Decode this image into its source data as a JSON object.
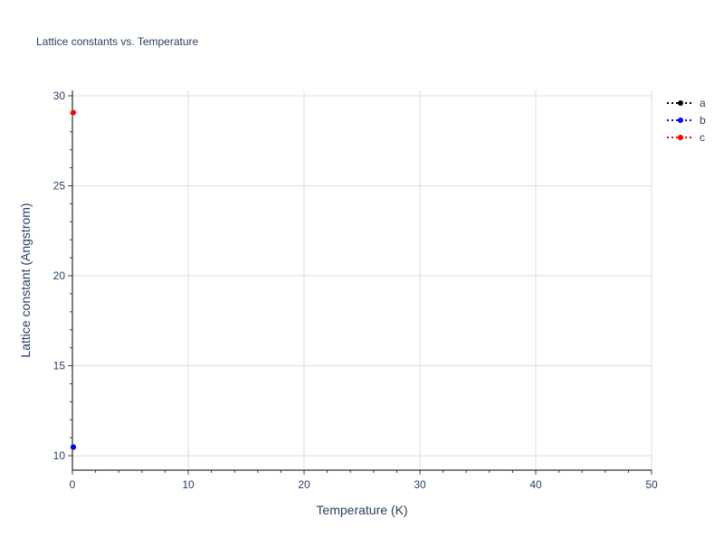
{
  "chart_data": {
    "type": "scatter",
    "title": "Lattice constants vs. Temperature",
    "xlabel": "Temperature (K)",
    "ylabel": "Lattice constant (Angstrom)",
    "xlim": [
      0,
      50
    ],
    "ylim": [
      9.2,
      30.3
    ],
    "xticks": [
      0,
      10,
      20,
      30,
      40,
      50
    ],
    "yticks": [
      10,
      15,
      20,
      25,
      30
    ],
    "grid": true,
    "legend_position": "top-right",
    "series": [
      {
        "name": "a",
        "color": "#000000",
        "line": "dotted",
        "x": [
          0
        ],
        "y": [
          10.48
        ]
      },
      {
        "name": "b",
        "color": "#0000ff",
        "line": "dotted",
        "x": [
          0
        ],
        "y": [
          10.48
        ]
      },
      {
        "name": "c",
        "color": "#ff0000",
        "line": "dotted",
        "x": [
          0
        ],
        "y": [
          29.07
        ]
      }
    ]
  }
}
